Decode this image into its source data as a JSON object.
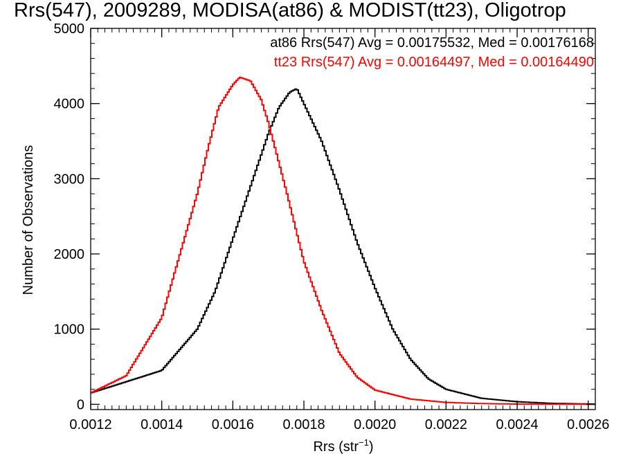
{
  "chart_data": {
    "type": "line",
    "title": "Rrs(547), 2009289, MODISA(at86) & MODIST(tt23), Oligotrop",
    "xlabel": "Rrs (str",
    "xlabel_sup": "−1",
    "xlabel_close": ")",
    "ylabel": "Number of Observations",
    "xlim": [
      0.0012,
      0.00262
    ],
    "ylim": [
      -70,
      5000
    ],
    "x_ticks": [
      0.0012,
      0.0014,
      0.0016,
      0.0018,
      0.002,
      0.0022,
      0.0024,
      0.0026
    ],
    "x_tick_labels": [
      "0.0012",
      "0.0014",
      "0.0016",
      "0.0018",
      "0.0020",
      "0.0022",
      "0.0024",
      "0.0026"
    ],
    "y_ticks": [
      0,
      1000,
      2000,
      3000,
      4000,
      5000
    ],
    "y_tick_labels": [
      "0",
      "1000",
      "2000",
      "3000",
      "4000",
      "5000"
    ],
    "grid": false,
    "annotations": [
      "at86 Rrs(547) Avg = 0.00175532, Med = 0.00176168",
      "tt23 Rrs(547) Avg = 0.00164497, Med = 0.00164490"
    ],
    "series": [
      {
        "color": "#000000",
        "x": [
          0.0012,
          0.0013,
          0.0014,
          0.0015,
          0.00155,
          0.0016,
          0.00165,
          0.0017,
          0.00173,
          0.00176,
          0.00178,
          0.0018,
          0.00185,
          0.0019,
          0.00195,
          0.002,
          0.00205,
          0.0021,
          0.00215,
          0.0022,
          0.0023,
          0.0024,
          0.0025,
          0.00262
        ],
        "values": [
          150,
          300,
          450,
          1000,
          1500,
          2200,
          2900,
          3600,
          3950,
          4150,
          4200,
          4000,
          3500,
          2850,
          2150,
          1550,
          1000,
          600,
          340,
          200,
          80,
          35,
          12,
          3
        ]
      },
      {
        "color": "#ff0000",
        "x": [
          0.0012,
          0.0013,
          0.0014,
          0.0015,
          0.00153,
          0.00156,
          0.0016,
          0.00162,
          0.00165,
          0.00168,
          0.0017,
          0.00175,
          0.0018,
          0.00185,
          0.0019,
          0.00195,
          0.002,
          0.0021,
          0.0022,
          0.0023,
          0.0024,
          0.00262
        ],
        "values": [
          150,
          380,
          1150,
          2800,
          3400,
          3950,
          4250,
          4350,
          4300,
          4050,
          3750,
          2850,
          1900,
          1250,
          680,
          360,
          190,
          70,
          25,
          10,
          3,
          0
        ]
      }
    ]
  }
}
